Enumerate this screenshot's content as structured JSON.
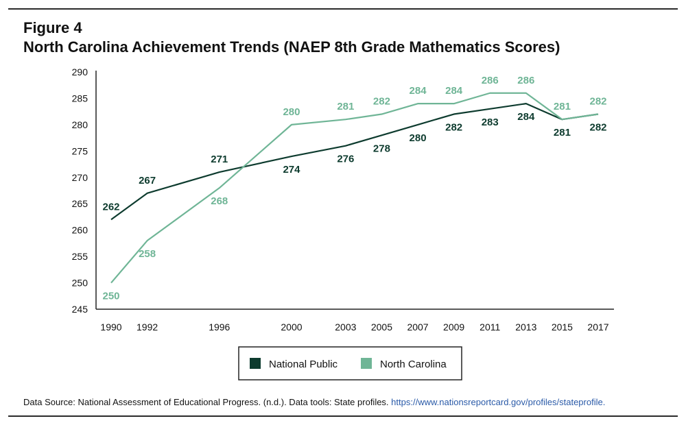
{
  "figure": {
    "label": "Figure 4",
    "title": "North Carolina Achievement Trends (NAEP 8th Grade Mathematics Scores)"
  },
  "source": {
    "text": "Data Source: National Assessment of Educational Progress. (n.d.). Data tools: State profiles.",
    "link": "https://www.nationsreportcard.gov/profiles/stateprofile."
  },
  "chart_data": {
    "type": "line",
    "title": "North Carolina Achievement Trends (NAEP 8th Grade Mathematics Scores)",
    "x": [
      1990,
      1992,
      1996,
      2000,
      2003,
      2005,
      2007,
      2009,
      2011,
      2013,
      2015,
      2017
    ],
    "series": [
      {
        "name": "National Public",
        "color": "#0d3b2e",
        "values": [
          262,
          267,
          271,
          274,
          276,
          278,
          280,
          282,
          283,
          284,
          281,
          282
        ]
      },
      {
        "name": "North Carolina",
        "color": "#6fb596",
        "values": [
          250,
          258,
          268,
          280,
          281,
          282,
          284,
          284,
          286,
          286,
          281,
          282
        ]
      }
    ],
    "ylim": [
      245,
      290
    ],
    "yticks": [
      245,
      250,
      255,
      260,
      265,
      270,
      275,
      280,
      285,
      290
    ],
    "grid": false,
    "legend": "bottom-center"
  }
}
